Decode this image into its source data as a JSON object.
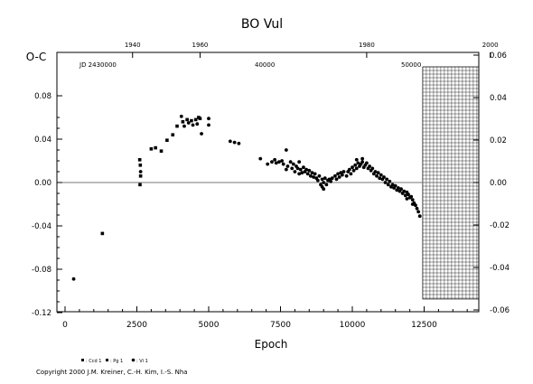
{
  "chart_data": {
    "type": "scatter",
    "title": "BO Vul",
    "ylabel": "O-C",
    "xlabel": "Epoch",
    "xlim": [
      -500,
      14500
    ],
    "ylim": [
      -0.12,
      0.065
    ],
    "right_ylim": [
      -0.06,
      0.065
    ],
    "grid": false,
    "x_ticks": [
      0,
      2500,
      5000,
      7500,
      10000,
      12500
    ],
    "x_tick_labels": [
      "0",
      "2500",
      "5000",
      "7500",
      "10000",
      "12500"
    ],
    "y_ticks": [
      -0.12,
      -0.08,
      -0.04,
      0.0,
      0.04,
      0.08
    ],
    "y_tick_labels": [
      "-0.12",
      "-0.08",
      "-0.04",
      "0.00",
      "0.04",
      "0.08"
    ],
    "right_ticks": [
      -0.06,
      -0.04,
      -0.02,
      0.0,
      0.02,
      0.04,
      0.06
    ],
    "right_tick_labels": [
      "-0.06",
      "-0.04",
      "-0.02",
      "0.00",
      "0.02",
      "0.04",
      "0.06"
    ],
    "top_year_ticks": [
      "1940",
      "1960",
      "1980",
      "2000"
    ],
    "top_year_epochs": [
      2350,
      4700,
      10500,
      14800
    ],
    "top_jd_labels": [
      "JD 2430000",
      "40000",
      "50000"
    ],
    "legend": {
      "placement": "bottom-left",
      "entries": [
        ": Ccd 1",
        ": Pg 1",
        ": Vi 1"
      ]
    },
    "copyright": "Copyright 2000 J.M. Kreiner, C.-H. Kim, I.-S. Nha",
    "hatched_region_x": [
      12450,
      14400
    ],
    "series": [
      {
        "name": "Pg 1",
        "marker": "square",
        "points": [
          [
            1300,
            -0.047
          ],
          [
            2600,
            0.021
          ],
          [
            2620,
            0.016
          ],
          [
            2630,
            0.006
          ],
          [
            2610,
            -0.002
          ],
          [
            3000,
            0.031
          ],
          [
            3150,
            0.032
          ],
          [
            3350,
            0.029
          ],
          [
            3550,
            0.039
          ],
          [
            3750,
            0.044
          ],
          [
            3900,
            0.052
          ],
          [
            4100,
            0.056
          ],
          [
            4250,
            0.058
          ],
          [
            4400,
            0.057
          ],
          [
            4550,
            0.058
          ],
          [
            4650,
            0.06
          ],
          [
            4700,
            0.059
          ]
        ]
      },
      {
        "name": "Vi 1",
        "marker": "dot",
        "points": [
          [
            300,
            -0.089
          ],
          [
            2630,
            0.01
          ],
          [
            4050,
            0.061
          ],
          [
            4150,
            0.052
          ],
          [
            4300,
            0.055
          ],
          [
            4450,
            0.053
          ],
          [
            4600,
            0.054
          ],
          [
            4750,
            0.045
          ],
          [
            5000,
            0.059
          ],
          [
            5000,
            0.053
          ],
          [
            5750,
            0.038
          ],
          [
            5900,
            0.037
          ],
          [
            6050,
            0.036
          ],
          [
            6800,
            0.022
          ],
          [
            7050,
            0.017
          ],
          [
            7200,
            0.019
          ],
          [
            7300,
            0.021
          ],
          [
            7350,
            0.018
          ],
          [
            7450,
            0.019
          ],
          [
            7550,
            0.02
          ],
          [
            7600,
            0.017
          ],
          [
            7700,
            0.03
          ],
          [
            7750,
            0.015
          ],
          [
            7850,
            0.019
          ],
          [
            7900,
            0.013
          ],
          [
            7950,
            0.017
          ],
          [
            8000,
            0.01
          ],
          [
            8050,
            0.015
          ],
          [
            8100,
            0.013
          ],
          [
            8150,
            0.019
          ],
          [
            8200,
            0.012
          ],
          [
            8250,
            0.009
          ],
          [
            8300,
            0.014
          ],
          [
            8350,
            0.01
          ],
          [
            8400,
            0.012
          ],
          [
            8450,
            0.008
          ],
          [
            8500,
            0.011
          ],
          [
            8550,
            0.006
          ],
          [
            8600,
            0.009
          ],
          [
            8650,
            0.005
          ],
          [
            8700,
            0.008
          ],
          [
            8750,
            0.004
          ],
          [
            8800,
            0.002
          ],
          [
            8850,
            0.006
          ],
          [
            8900,
            -0.002
          ],
          [
            8950,
            0.003
          ],
          [
            9000,
            0.0
          ],
          [
            9050,
            0.004
          ],
          [
            9100,
            -0.002
          ],
          [
            9150,
            0.002
          ],
          [
            9200,
            0.003
          ],
          [
            9250,
            0.001
          ],
          [
            9300,
            0.004
          ],
          [
            9400,
            0.006
          ],
          [
            9450,
            0.003
          ],
          [
            9500,
            0.008
          ],
          [
            9550,
            0.005
          ],
          [
            9600,
            0.009
          ],
          [
            9650,
            0.007
          ],
          [
            9700,
            0.01
          ],
          [
            9800,
            0.006
          ],
          [
            9850,
            0.01
          ],
          [
            9900,
            0.012
          ],
          [
            9950,
            0.008
          ],
          [
            10000,
            0.014
          ],
          [
            10050,
            0.011
          ],
          [
            10100,
            0.016
          ],
          [
            10150,
            0.013
          ],
          [
            10200,
            0.018
          ],
          [
            10250,
            0.015
          ],
          [
            10300,
            0.017
          ],
          [
            10350,
            0.019
          ],
          [
            10400,
            0.014
          ],
          [
            10450,
            0.016
          ],
          [
            10500,
            0.018
          ],
          [
            10550,
            0.013
          ],
          [
            10600,
            0.015
          ],
          [
            10650,
            0.011
          ],
          [
            10700,
            0.013
          ],
          [
            10750,
            0.008
          ],
          [
            10800,
            0.01
          ],
          [
            10850,
            0.006
          ],
          [
            10900,
            0.009
          ],
          [
            10950,
            0.004
          ],
          [
            11000,
            0.007
          ],
          [
            11050,
            0.003
          ],
          [
            11100,
            0.005
          ],
          [
            11150,
            0.0
          ],
          [
            11200,
            0.003
          ],
          [
            11250,
            -0.002
          ],
          [
            11300,
            0.001
          ],
          [
            11350,
            -0.004
          ],
          [
            11400,
            -0.002
          ],
          [
            11450,
            -0.005
          ],
          [
            11500,
            -0.003
          ],
          [
            11550,
            -0.007
          ],
          [
            11600,
            -0.005
          ],
          [
            11650,
            -0.008
          ],
          [
            11700,
            -0.006
          ],
          [
            11750,
            -0.01
          ],
          [
            11800,
            -0.008
          ],
          [
            11850,
            -0.012
          ],
          [
            11900,
            -0.009
          ],
          [
            11950,
            -0.011
          ],
          [
            12000,
            -0.014
          ],
          [
            12050,
            -0.013
          ],
          [
            12100,
            -0.016
          ],
          [
            12150,
            -0.019
          ],
          [
            12200,
            -0.021
          ],
          [
            12250,
            -0.024
          ],
          [
            12300,
            -0.027
          ],
          [
            12350,
            -0.031
          ],
          [
            9000,
            -0.006
          ],
          [
            8950,
            -0.004
          ],
          [
            10150,
            0.021
          ],
          [
            10350,
            0.022
          ],
          [
            7700,
            0.012
          ],
          [
            8150,
            0.008
          ],
          [
            11900,
            -0.015
          ],
          [
            12100,
            -0.02
          ]
        ]
      }
    ]
  }
}
